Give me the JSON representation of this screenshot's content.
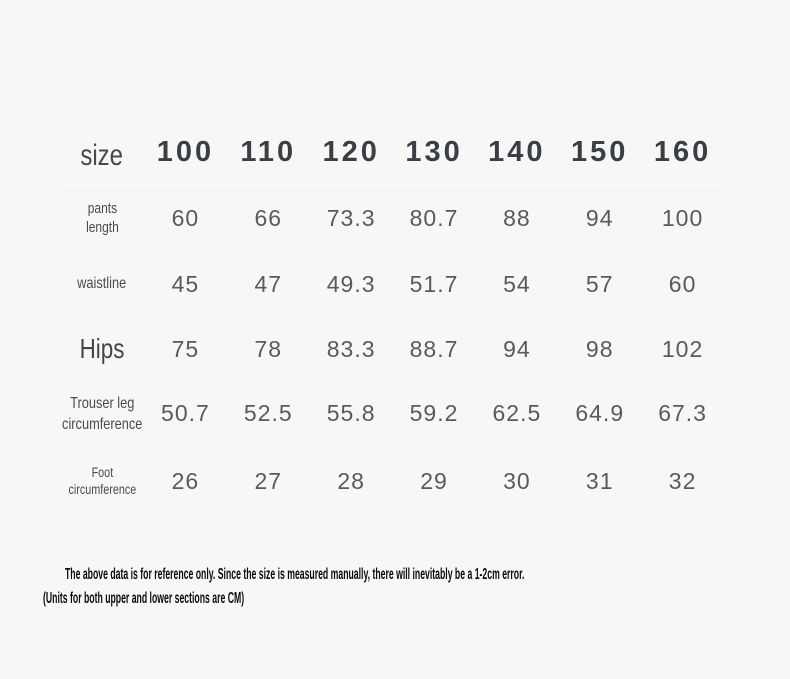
{
  "chart_data": {
    "type": "table",
    "corner_label": "size",
    "columns": [
      "100",
      "110",
      "120",
      "130",
      "140",
      "150",
      "160"
    ],
    "rows": [
      {
        "label": "pants length",
        "values": [
          60,
          66,
          73.3,
          80.7,
          88,
          94,
          100
        ]
      },
      {
        "label": "waistline",
        "values": [
          45,
          47,
          49.3,
          51.7,
          54,
          57,
          60
        ]
      },
      {
        "label": "Hips",
        "values": [
          75,
          78,
          83.3,
          88.7,
          94,
          98,
          102
        ]
      },
      {
        "label": "Trouser leg circumference",
        "values": [
          50.7,
          52.5,
          55.8,
          59.2,
          62.5,
          64.9,
          67.3
        ]
      },
      {
        "label": "Foot circumference",
        "values": [
          26,
          27,
          28,
          29,
          30,
          31,
          32
        ]
      }
    ],
    "annotations": [
      "The above data is for reference only. Since the size is measured manually, there will inevitably be a 1-2cm error.",
      "(Units for both upper and lower sections are CM)"
    ]
  },
  "table": {
    "row_labels": [
      "pants\nlength",
      "waistline",
      "Hips",
      "Trouser leg\ncircumference",
      "Foot\ncircumference"
    ]
  },
  "colors": {
    "background": "#f7f7f7",
    "header_text": "#3a3f45",
    "body_text": "#5a5a5a",
    "label_text": "#4b4b4b",
    "footnote_text": "#0c0c0c",
    "divider": "#ffffff"
  }
}
